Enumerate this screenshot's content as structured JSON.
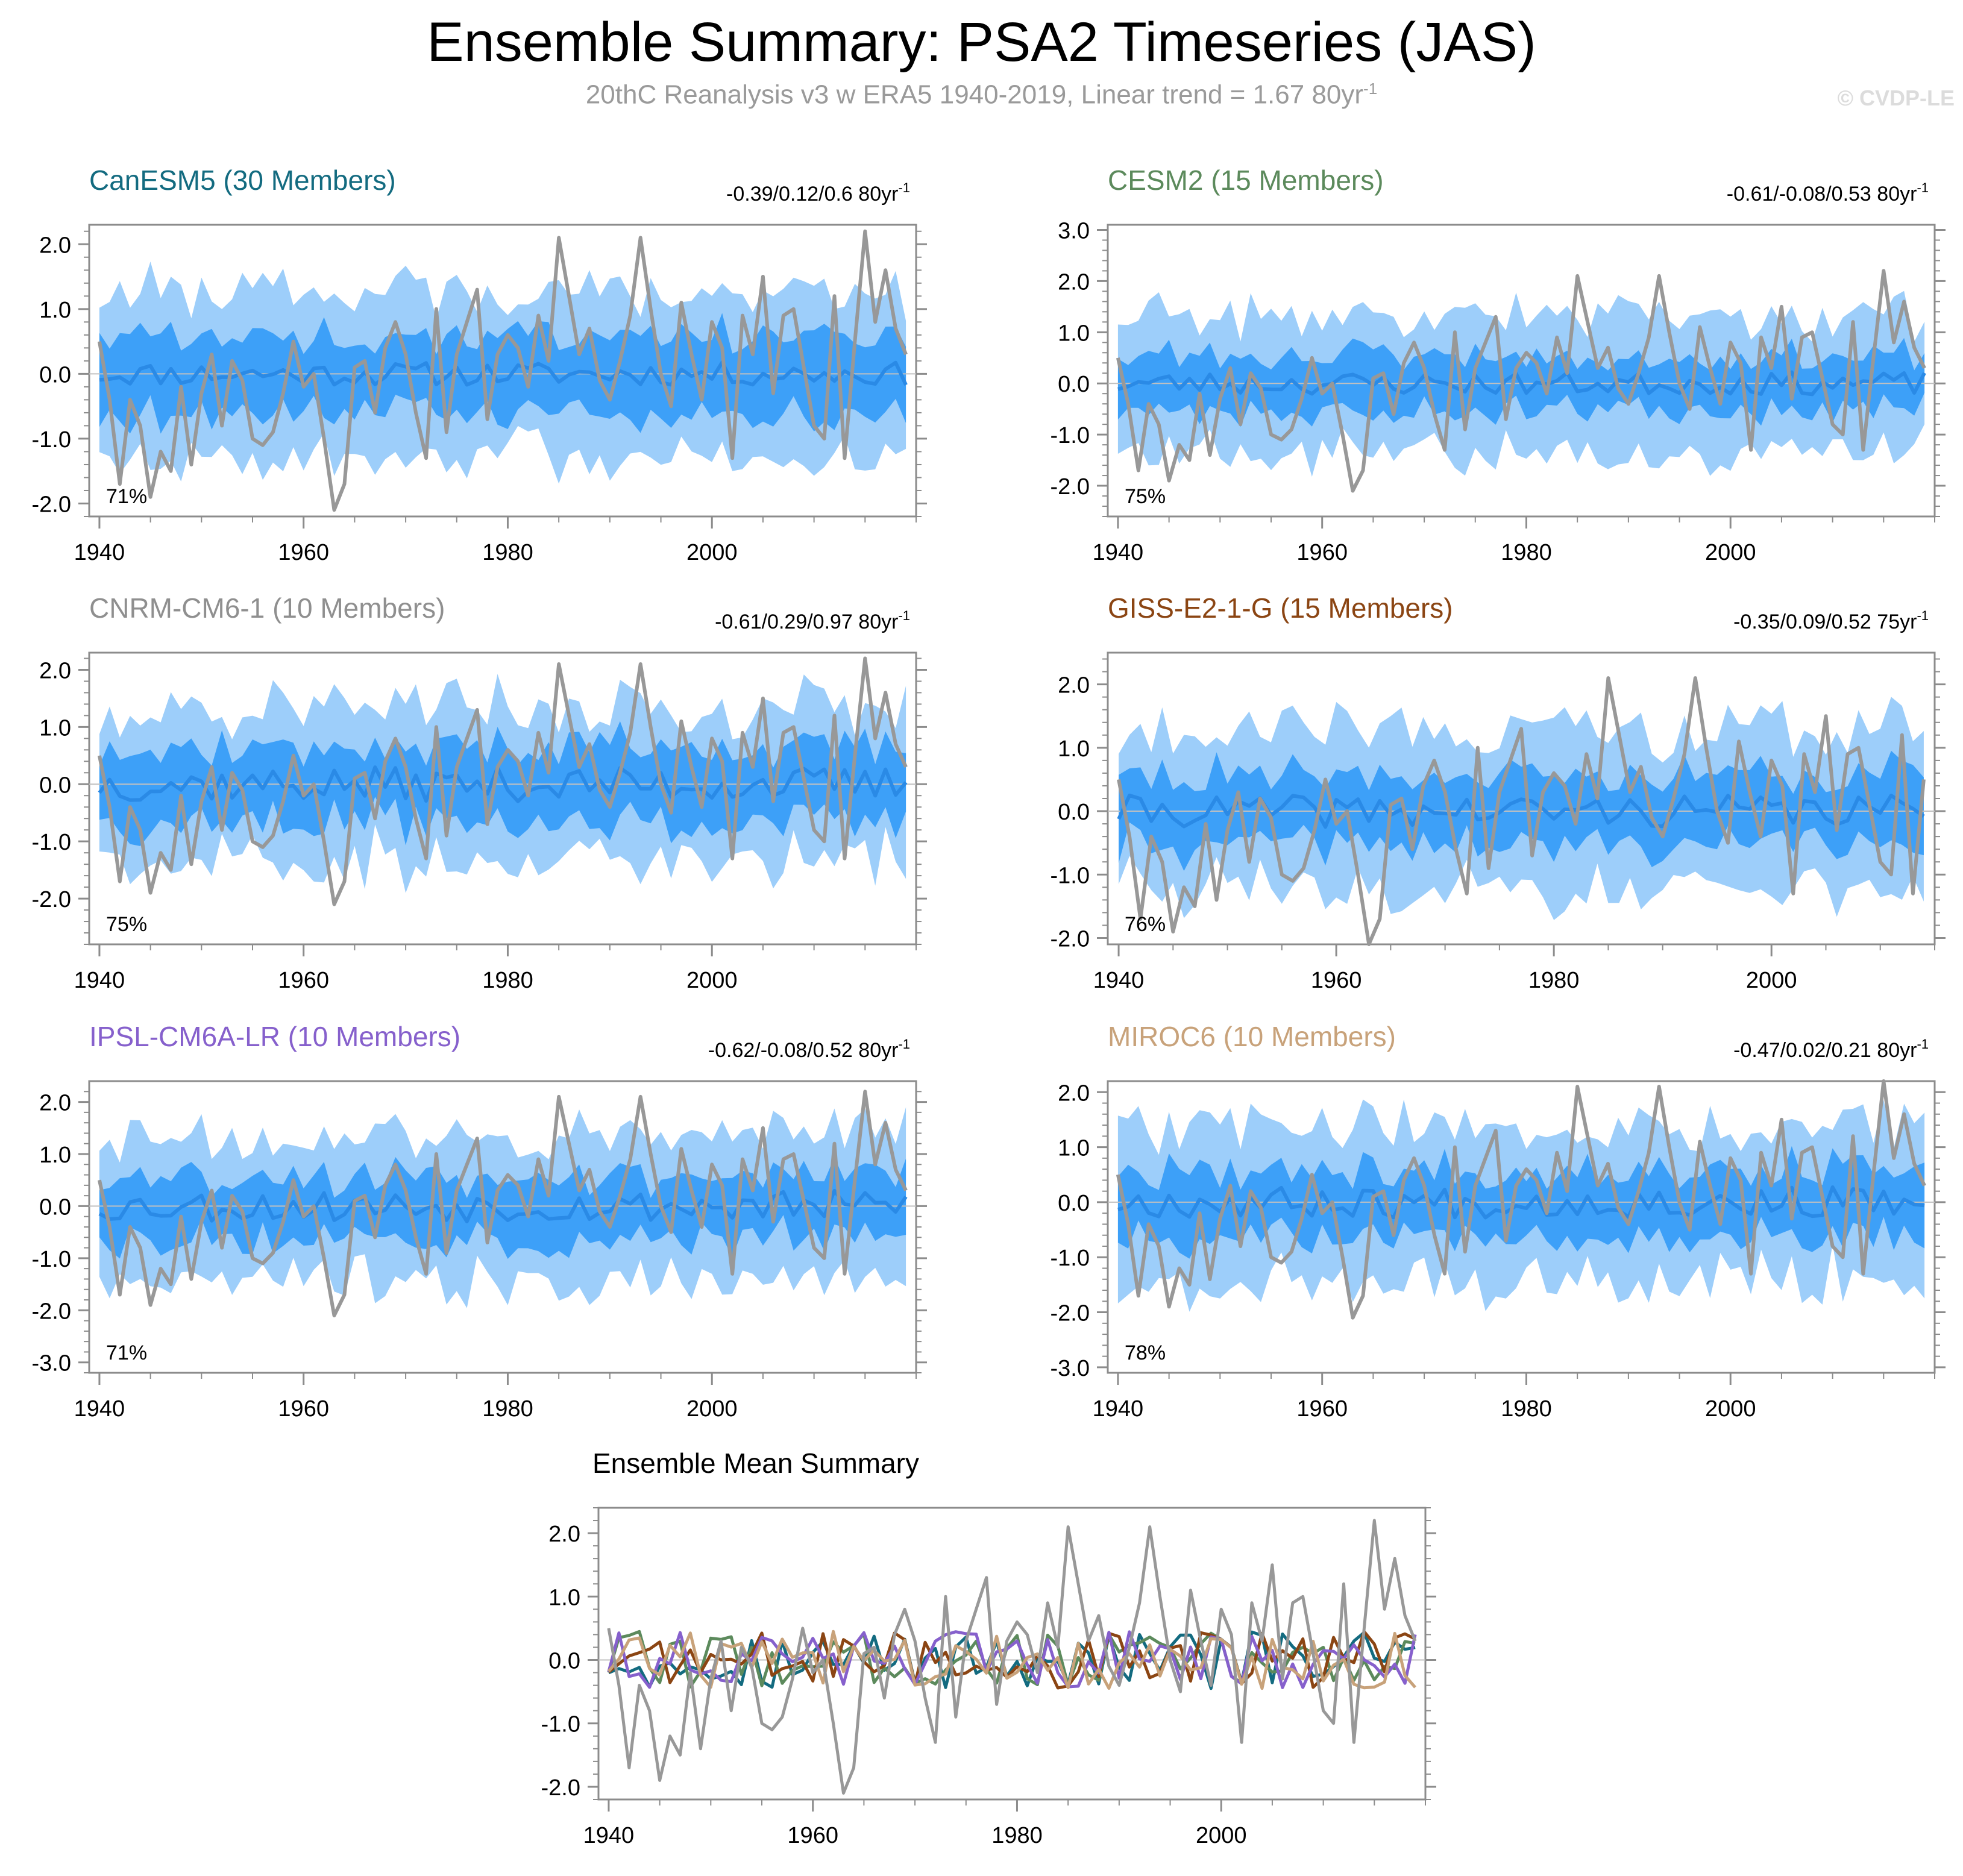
{
  "title": "Ensemble Summary: PSA2 Timeseries (JAS)",
  "subtitle": {
    "text": "20thC Reanalysis v3 w ERA5 1940-2019, Linear trend = 1.67 80yr",
    "exp": "-1"
  },
  "watermark": "© CVDP-LE",
  "colors": {
    "band_outer": "#9dcefa",
    "band_inner": "#3da0f8",
    "ens_mean": "#2a8ae6",
    "observed": "#989898",
    "axis": "#8c8c8c",
    "zero_line": "#c0c0c0"
  },
  "chart_data": [
    {
      "type": "area",
      "panel": "CanESM5",
      "title": "CanESM5 (30 Members)",
      "title_color": "#136b80",
      "trend_label": "-0.39/0.12/0.6 80yr",
      "trend_exp": "-1",
      "percent_label": "71%",
      "ylim": [
        -2.2,
        2.3
      ],
      "yticks": [
        -2.0,
        -1.0,
        0.0,
        1.0,
        2.0
      ],
      "xlim": [
        1939,
        2020
      ],
      "xticks": [
        1940,
        1960,
        1980,
        2000
      ],
      "seed": 11,
      "spread_outer": 1.25,
      "spread_inner": 0.6,
      "mean_amp": 0.18
    },
    {
      "type": "area",
      "panel": "CESM2",
      "title": "CESM2 (15 Members)",
      "title_color": "#5c8a5c",
      "trend_label": "-0.61/-0.08/0.53 80yr",
      "trend_exp": "-1",
      "percent_label": "75%",
      "ylim": [
        -2.6,
        3.1
      ],
      "yticks": [
        -2.0,
        -1.0,
        0.0,
        1.0,
        2.0,
        3.0
      ],
      "xlim": [
        1939,
        2020
      ],
      "xticks": [
        1940,
        1960,
        1980,
        2000
      ],
      "seed": 23,
      "spread_outer": 1.3,
      "spread_inner": 0.55,
      "mean_amp": 0.22
    },
    {
      "type": "area",
      "panel": "CNRM-CM6-1",
      "title": "CNRM-CM6-1 (10 Members)",
      "title_color": "#8f8f8f",
      "trend_label": "-0.61/0.29/0.97 80yr",
      "trend_exp": "-1",
      "percent_label": "75%",
      "ylim": [
        -2.8,
        2.3
      ],
      "yticks": [
        -2.0,
        -1.0,
        0.0,
        1.0,
        2.0
      ],
      "xlim": [
        1939,
        2020
      ],
      "xticks": [
        1940,
        1960,
        1980,
        2000
      ],
      "seed": 37,
      "spread_outer": 1.3,
      "spread_inner": 0.65,
      "mean_amp": 0.3
    },
    {
      "type": "area",
      "panel": "GISS-E2-1-G",
      "title": "GISS-E2-1-G (15 Members)",
      "title_color": "#8b4513",
      "trend_label": "-0.35/0.09/0.52 75yr",
      "trend_exp": "-1",
      "percent_label": "76%",
      "ylim": [
        -2.1,
        2.5
      ],
      "yticks": [
        -2.0,
        -1.0,
        0.0,
        1.0,
        2.0
      ],
      "xlim": [
        1939,
        2015
      ],
      "xticks": [
        1940,
        1960,
        1980,
        2000
      ],
      "seed": 41,
      "spread_outer": 1.25,
      "spread_inner": 0.55,
      "mean_amp": 0.25
    },
    {
      "type": "area",
      "panel": "IPSL-CM6A-LR",
      "title": "IPSL-CM6A-LR (10 Members)",
      "title_color": "#8660cc",
      "trend_label": "-0.62/-0.08/0.52 80yr",
      "trend_exp": "-1",
      "percent_label": "71%",
      "ylim": [
        -3.2,
        2.4
      ],
      "yticks": [
        -3.0,
        -2.0,
        -1.0,
        0.0,
        1.0,
        2.0
      ],
      "xlim": [
        1939,
        2020
      ],
      "xticks": [
        1940,
        1960,
        1980,
        2000
      ],
      "seed": 53,
      "spread_outer": 1.35,
      "spread_inner": 0.6,
      "mean_amp": 0.3
    },
    {
      "type": "area",
      "panel": "MIROC6",
      "title": "MIROC6 (10 Members)",
      "title_color": "#c8a27a",
      "trend_label": "-0.47/0.02/0.21 80yr",
      "trend_exp": "-1",
      "percent_label": "78%",
      "ylim": [
        -3.1,
        2.2
      ],
      "yticks": [
        -3.0,
        -2.0,
        -1.0,
        0.0,
        1.0,
        2.0
      ],
      "xlim": [
        1939,
        2020
      ],
      "xticks": [
        1940,
        1960,
        1980,
        2000
      ],
      "seed": 67,
      "spread_outer": 1.35,
      "spread_inner": 0.6,
      "mean_amp": 0.28
    },
    {
      "type": "line",
      "panel": "Ensemble Mean",
      "title": "Ensemble Mean Summary",
      "title_color": "#000000",
      "ylim": [
        -2.2,
        2.4
      ],
      "yticks": [
        -2.0,
        -1.0,
        0.0,
        1.0,
        2.0
      ],
      "xlim": [
        1939,
        2020
      ],
      "xticks": [
        1940,
        1960,
        1980,
        2000
      ],
      "series_colors": [
        "#136b80",
        "#5c8a5c",
        "#8b4513",
        "#8660cc",
        "#c8a27a",
        "#8f8f8f"
      ],
      "series_names": [
        "CanESM5",
        "CESM2",
        "GISS-E2-1-G",
        "IPSL-CM6A-LR",
        "MIROC6",
        "CNRM-CM6-1"
      ]
    }
  ],
  "observed": {
    "name": "20thC Reanalysis v3 w ERA5",
    "years": [
      1940,
      2019
    ],
    "values": [
      0.5,
      -0.4,
      -1.7,
      -0.4,
      -0.8,
      -1.9,
      -1.2,
      -1.5,
      -0.2,
      -1.4,
      -0.3,
      0.3,
      -0.8,
      0.2,
      -0.1,
      -1.0,
      -1.1,
      -0.9,
      -0.3,
      0.5,
      -0.2,
      0.0,
      -1.0,
      -2.1,
      -1.7,
      0.1,
      0.2,
      -0.6,
      0.4,
      0.8,
      0.3,
      -0.6,
      -1.3,
      1.0,
      -0.9,
      0.3,
      0.8,
      1.3,
      -0.7,
      0.3,
      0.6,
      0.4,
      -0.2,
      0.9,
      0.2,
      2.1,
      1.2,
      0.3,
      0.7,
      -0.1,
      -0.4,
      0.2,
      0.9,
      2.1,
      1.0,
      0.0,
      -0.5,
      1.1,
      0.3,
      -0.4,
      0.8,
      0.4,
      -1.3,
      0.9,
      0.3,
      1.5,
      -0.3,
      0.9,
      1.0,
      0.1,
      -0.8,
      -1.0,
      1.2,
      -1.3,
      0.5,
      2.2,
      0.8,
      1.6,
      0.7,
      0.3
    ]
  }
}
